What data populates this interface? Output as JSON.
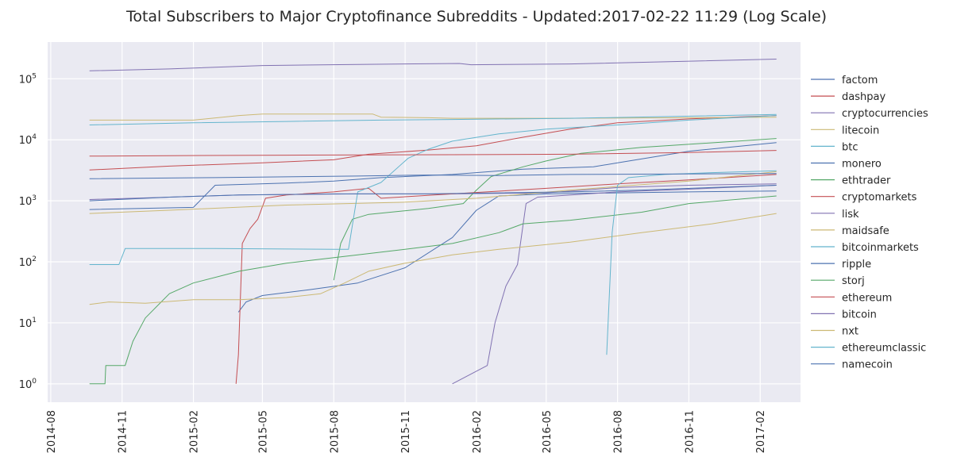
{
  "chart_data": {
    "type": "line",
    "title": "Total Subscribers to Major Cryptofinance Subreddits - Updated:2017-02-22 11:29 (Log Scale)",
    "xlabel": "",
    "ylabel": "",
    "yscale": "log",
    "ylim": [
      0.5,
      400000
    ],
    "xlim": [
      "2014-07-28",
      "2017-03-25"
    ],
    "y_ticks": [
      1,
      10,
      100,
      1000,
      10000,
      100000
    ],
    "y_tick_labels": [
      {
        "base": "10",
        "exp": "0"
      },
      {
        "base": "10",
        "exp": "1"
      },
      {
        "base": "10",
        "exp": "2"
      },
      {
        "base": "10",
        "exp": "3"
      },
      {
        "base": "10",
        "exp": "4"
      },
      {
        "base": "10",
        "exp": "5"
      }
    ],
    "x_ticks": [
      "2014-08-01",
      "2014-11-01",
      "2015-02-01",
      "2015-05-01",
      "2015-08-01",
      "2015-11-01",
      "2016-02-01",
      "2016-05-01",
      "2016-08-01",
      "2016-11-01",
      "2017-02-01"
    ],
    "x_tick_labels": [
      "2014-08",
      "2014-11",
      "2015-02",
      "2015-05",
      "2015-08",
      "2015-11",
      "2016-02",
      "2016-05",
      "2016-08",
      "2016-11",
      "2017-02"
    ],
    "grid": true,
    "background": "#EAEAF2",
    "legend_position": "right",
    "series": [
      {
        "name": "factom",
        "color": "#4C72B0",
        "points": [
          [
            "2015-03-31",
            15
          ],
          [
            "2015-04-10",
            22
          ],
          [
            "2015-05-01",
            28
          ],
          [
            "2015-07-01",
            35
          ],
          [
            "2015-09-01",
            45
          ],
          [
            "2015-11-01",
            80
          ],
          [
            "2016-01-01",
            250
          ],
          [
            "2016-02-01",
            700
          ],
          [
            "2016-03-01",
            1200
          ],
          [
            "2016-05-01",
            1300
          ],
          [
            "2016-08-01",
            1350
          ],
          [
            "2016-11-01",
            1400
          ],
          [
            "2017-02-22",
            1450
          ]
        ]
      },
      {
        "name": "dashpay",
        "color": "#C44E52",
        "points": [
          [
            "2014-09-20",
            3200
          ],
          [
            "2015-01-01",
            3700
          ],
          [
            "2015-05-01",
            4200
          ],
          [
            "2015-08-01",
            4700
          ],
          [
            "2015-09-15",
            5800
          ],
          [
            "2015-12-01",
            6800
          ],
          [
            "2016-02-01",
            8000
          ],
          [
            "2016-04-01",
            11000
          ],
          [
            "2016-06-01",
            15000
          ],
          [
            "2016-08-01",
            19000
          ],
          [
            "2016-11-01",
            22000
          ],
          [
            "2017-02-22",
            25000
          ]
        ]
      },
      {
        "name": "cryptocurrencies",
        "color": "#8172B2",
        "points": [
          [
            "2014-09-20",
            1050
          ],
          [
            "2015-01-01",
            1150
          ],
          [
            "2015-04-01",
            1250
          ],
          [
            "2015-09-01",
            1300
          ],
          [
            "2016-01-01",
            1300
          ],
          [
            "2016-05-01",
            1350
          ],
          [
            "2016-08-01",
            1650
          ],
          [
            "2016-11-01",
            1800
          ],
          [
            "2017-02-22",
            1900
          ]
        ]
      },
      {
        "name": "litecoin",
        "color": "#CCB974",
        "points": [
          [
            "2014-09-20",
            21000
          ],
          [
            "2015-02-01",
            21000
          ],
          [
            "2015-04-01",
            25000
          ],
          [
            "2015-05-01",
            26500
          ],
          [
            "2015-09-20",
            26500
          ],
          [
            "2015-10-01",
            23500
          ],
          [
            "2015-12-01",
            23000
          ],
          [
            "2016-01-01",
            22500
          ],
          [
            "2016-06-01",
            22500
          ],
          [
            "2016-11-01",
            23000
          ],
          [
            "2017-02-22",
            23500
          ]
        ]
      },
      {
        "name": "btc",
        "color": "#64B5CD",
        "points": [
          [
            "2014-09-20",
            17500
          ],
          [
            "2015-02-01",
            19000
          ],
          [
            "2015-06-01",
            20000
          ],
          [
            "2015-10-01",
            21000
          ],
          [
            "2016-01-01",
            21500
          ],
          [
            "2016-06-01",
            22500
          ],
          [
            "2016-10-01",
            24000
          ],
          [
            "2017-02-22",
            26000
          ]
        ]
      },
      {
        "name": "monero",
        "color": "#4C72B0",
        "points": [
          [
            "2014-09-20",
            720
          ],
          [
            "2015-02-01",
            780
          ],
          [
            "2015-03-01",
            1800
          ],
          [
            "2015-06-01",
            1950
          ],
          [
            "2015-08-01",
            2100
          ],
          [
            "2015-10-01",
            2400
          ],
          [
            "2016-01-01",
            2700
          ],
          [
            "2016-04-01",
            3300
          ],
          [
            "2016-07-01",
            3600
          ],
          [
            "2016-08-01",
            4200
          ],
          [
            "2016-11-01",
            6500
          ],
          [
            "2017-02-22",
            9000
          ]
        ]
      },
      {
        "name": "ethtrader",
        "color": "#55A868",
        "points": [
          [
            "2015-08-01",
            50
          ],
          [
            "2015-08-10",
            200
          ],
          [
            "2015-08-25",
            500
          ],
          [
            "2015-09-15",
            600
          ],
          [
            "2015-12-01",
            750
          ],
          [
            "2016-01-15",
            900
          ],
          [
            "2016-02-01",
            1500
          ],
          [
            "2016-02-20",
            2500
          ],
          [
            "2016-04-01",
            3600
          ],
          [
            "2016-05-01",
            4500
          ],
          [
            "2016-06-15",
            6000
          ],
          [
            "2016-09-01",
            7500
          ],
          [
            "2017-02-22",
            10500
          ]
        ]
      },
      {
        "name": "cryptomarkets",
        "color": "#C44E52",
        "points": [
          [
            "2015-03-28",
            1
          ],
          [
            "2015-03-31",
            3
          ],
          [
            "2015-04-05",
            200
          ],
          [
            "2015-04-15",
            350
          ],
          [
            "2015-04-25",
            500
          ],
          [
            "2015-05-05",
            1100
          ],
          [
            "2015-06-01",
            1250
          ],
          [
            "2015-08-01",
            1400
          ],
          [
            "2015-09-15",
            1600
          ],
          [
            "2015-10-01",
            1100
          ],
          [
            "2016-01-01",
            1300
          ],
          [
            "2016-05-01",
            1600
          ],
          [
            "2016-08-01",
            1900
          ],
          [
            "2016-11-01",
            2200
          ],
          [
            "2017-02-22",
            2700
          ]
        ]
      },
      {
        "name": "lisk",
        "color": "#8172B2",
        "points": [
          [
            "2016-01-01",
            1
          ],
          [
            "2016-02-15",
            2
          ],
          [
            "2016-02-25",
            10
          ],
          [
            "2016-03-10",
            40
          ],
          [
            "2016-03-25",
            90
          ],
          [
            "2016-04-05",
            900
          ],
          [
            "2016-04-20",
            1150
          ],
          [
            "2016-08-01",
            1400
          ],
          [
            "2016-11-01",
            1550
          ],
          [
            "2017-02-22",
            1800
          ]
        ]
      },
      {
        "name": "maidsafe",
        "color": "#CCB974",
        "points": [
          [
            "2014-09-20",
            620
          ],
          [
            "2015-01-01",
            700
          ],
          [
            "2015-06-01",
            850
          ],
          [
            "2015-11-01",
            950
          ],
          [
            "2016-02-01",
            1100
          ],
          [
            "2016-06-01",
            1500
          ],
          [
            "2016-11-01",
            2100
          ],
          [
            "2017-02-22",
            3000
          ]
        ]
      },
      {
        "name": "bitcoinmarkets",
        "color": "#64B5CD",
        "points": [
          [
            "2014-09-20",
            90
          ],
          [
            "2014-10-28",
            90
          ],
          [
            "2014-11-05",
            165
          ],
          [
            "2015-03-01",
            165
          ],
          [
            "2015-08-01",
            160
          ],
          [
            "2015-08-20",
            160
          ],
          [
            "2015-09-01",
            1400
          ],
          [
            "2015-10-01",
            2000
          ],
          [
            "2015-11-05",
            5000
          ],
          [
            "2015-12-01",
            7000
          ],
          [
            "2016-01-01",
            9500
          ],
          [
            "2016-03-01",
            12500
          ],
          [
            "2016-05-01",
            15000
          ],
          [
            "2016-08-01",
            17500
          ],
          [
            "2016-11-01",
            21000
          ],
          [
            "2017-02-22",
            25000
          ]
        ]
      },
      {
        "name": "ripple",
        "color": "#4C72B0",
        "points": [
          [
            "2014-09-20",
            1000
          ],
          [
            "2015-01-01",
            1150
          ],
          [
            "2015-04-01",
            1250
          ],
          [
            "2015-08-01",
            1300
          ],
          [
            "2015-12-01",
            1300
          ],
          [
            "2016-03-01",
            1350
          ],
          [
            "2016-06-01",
            1400
          ],
          [
            "2016-09-01",
            1500
          ],
          [
            "2016-12-01",
            1650
          ],
          [
            "2017-02-22",
            1800
          ]
        ]
      },
      {
        "name": "storj",
        "color": "#55A868",
        "points": [
          [
            "2014-09-20",
            1
          ],
          [
            "2014-10-10",
            1
          ],
          [
            "2014-10-11",
            2
          ],
          [
            "2014-11-05",
            2
          ],
          [
            "2014-11-15",
            5
          ],
          [
            "2014-12-01",
            12
          ],
          [
            "2015-01-01",
            30
          ],
          [
            "2015-02-01",
            45
          ],
          [
            "2015-04-01",
            70
          ],
          [
            "2015-06-01",
            95
          ],
          [
            "2015-09-01",
            130
          ],
          [
            "2015-11-01",
            160
          ],
          [
            "2016-01-01",
            200
          ],
          [
            "2016-03-01",
            300
          ],
          [
            "2016-04-01",
            420
          ],
          [
            "2016-06-01",
            480
          ],
          [
            "2016-09-01",
            650
          ],
          [
            "2016-11-01",
            900
          ],
          [
            "2017-02-22",
            1200
          ]
        ]
      },
      {
        "name": "ethereum",
        "color": "#C44E52",
        "points": [
          [
            "2014-09-20",
            5400
          ],
          [
            "2015-01-01",
            5500
          ],
          [
            "2015-06-01",
            5600
          ],
          [
            "2016-01-01",
            5700
          ],
          [
            "2016-06-01",
            5800
          ],
          [
            "2016-11-01",
            6200
          ],
          [
            "2017-02-22",
            6700
          ]
        ]
      },
      {
        "name": "bitcoin",
        "color": "#8172B2",
        "points": [
          [
            "2014-09-20",
            135000
          ],
          [
            "2015-01-01",
            145000
          ],
          [
            "2015-05-01",
            165000
          ],
          [
            "2015-09-01",
            172000
          ],
          [
            "2016-01-10",
            178000
          ],
          [
            "2016-01-25",
            170000
          ],
          [
            "2016-06-01",
            175000
          ],
          [
            "2016-10-01",
            190000
          ],
          [
            "2017-02-22",
            210000
          ]
        ]
      },
      {
        "name": "nxt",
        "color": "#CCB974",
        "points": [
          [
            "2014-09-20",
            20
          ],
          [
            "2014-10-15",
            22
          ],
          [
            "2014-12-01",
            21
          ],
          [
            "2015-02-01",
            24
          ],
          [
            "2015-04-01",
            24
          ],
          [
            "2015-06-01",
            26
          ],
          [
            "2015-07-15",
            30
          ],
          [
            "2015-08-15",
            45
          ],
          [
            "2015-09-15",
            70
          ],
          [
            "2015-11-01",
            95
          ],
          [
            "2016-01-01",
            130
          ],
          [
            "2016-03-01",
            160
          ],
          [
            "2016-06-01",
            210
          ],
          [
            "2016-09-01",
            300
          ],
          [
            "2016-12-01",
            420
          ],
          [
            "2017-02-22",
            620
          ]
        ]
      },
      {
        "name": "ethereumclassic",
        "color": "#64B5CD",
        "points": [
          [
            "2016-07-18",
            3
          ],
          [
            "2016-07-25",
            300
          ],
          [
            "2016-08-01",
            1800
          ],
          [
            "2016-08-15",
            2400
          ],
          [
            "2016-10-01",
            2700
          ],
          [
            "2016-12-01",
            2900
          ],
          [
            "2017-02-22",
            3100
          ]
        ]
      },
      {
        "name": "namecoin",
        "color": "#4C72B0",
        "points": [
          [
            "2014-09-20",
            2300
          ],
          [
            "2015-03-01",
            2400
          ],
          [
            "2015-09-01",
            2550
          ],
          [
            "2015-12-01",
            2650
          ],
          [
            "2016-03-01",
            2600
          ],
          [
            "2016-06-01",
            2700
          ],
          [
            "2016-11-01",
            2750
          ],
          [
            "2017-02-22",
            2800
          ]
        ]
      }
    ]
  }
}
